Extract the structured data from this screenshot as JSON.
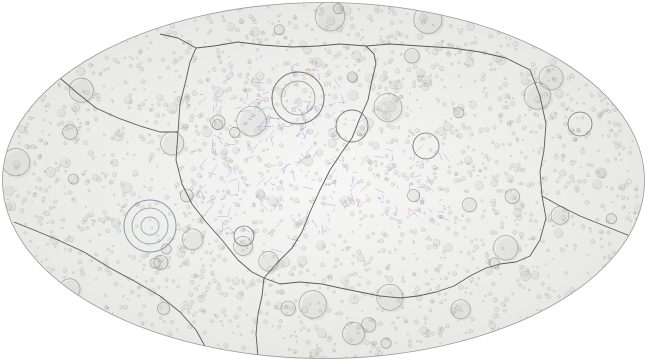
{
  "map": {
    "projection": "hammer-equal-area",
    "colors": {
      "surface": "#f2f2f0",
      "crater_rim": "#8a8a8a",
      "crater_shadow": "#b5b5b2",
      "boundary": "#5a5a5a",
      "red_feature": "#d94040",
      "blue_feature": "#4a5fd0"
    },
    "regions": [
      {
        "id": "north",
        "name": "",
        "subtitle": ""
      },
      {
        "id": "center",
        "name": "",
        "subtitle": ""
      },
      {
        "id": "east",
        "name": "",
        "subtitle": ""
      },
      {
        "id": "west",
        "name": "",
        "subtitle": ""
      },
      {
        "id": "far-east",
        "name": "",
        "subtitle": ""
      },
      {
        "id": "southwest",
        "name": "",
        "subtitle": ""
      },
      {
        "id": "southeast",
        "name": "",
        "subtitle": ""
      }
    ]
  }
}
